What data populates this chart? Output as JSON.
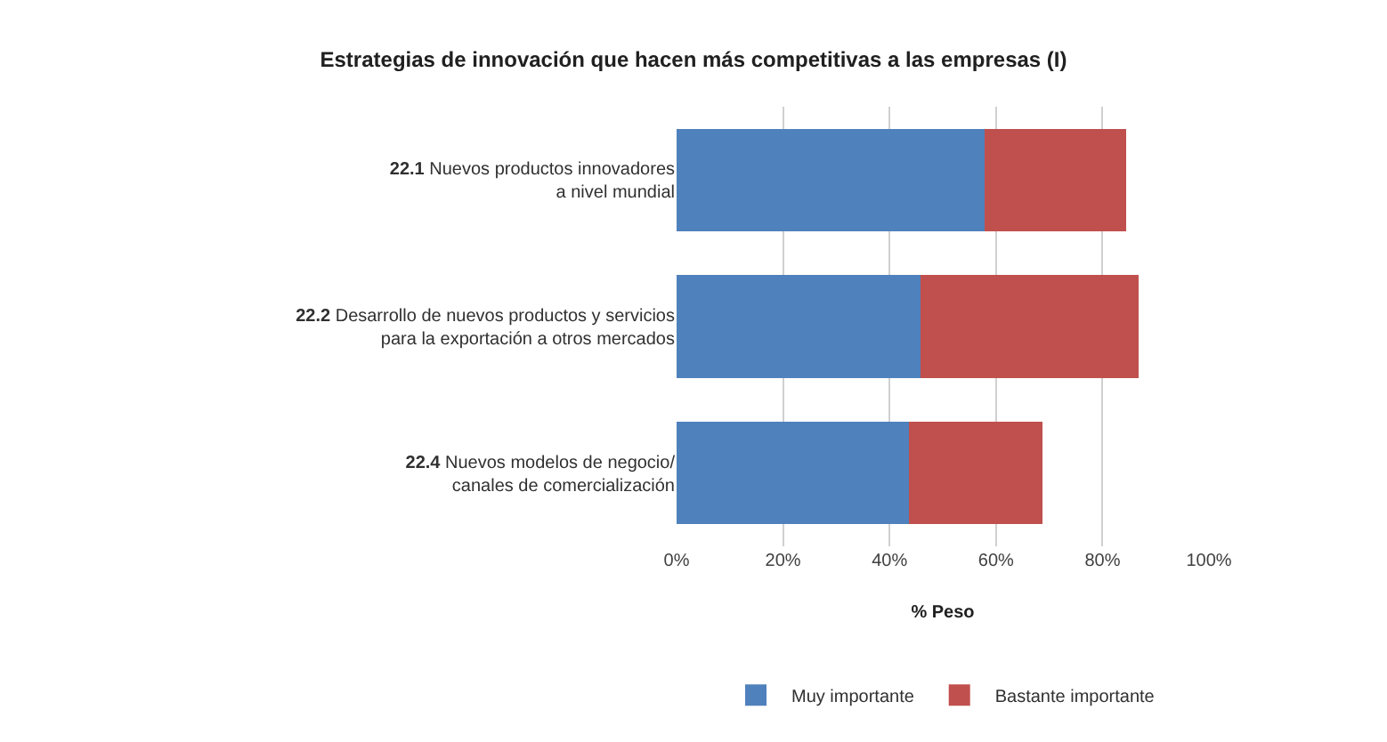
{
  "chart_data": {
    "type": "bar",
    "orientation": "horizontal",
    "stacked": true,
    "title": "Estrategias de innovación que hacen más competitivas a las empresas (I)",
    "xlabel": "% Peso",
    "categories": [
      "22.1 Nuevos productos innovadores\na nivel mundial",
      "22.2 Desarrollo de nuevos productos y servicios\npara la exportación a otros mercados",
      "22.4 Nuevos modelos de negocio/\ncanales de comercialización"
    ],
    "series": [
      {
        "name": "Muy importante",
        "color": "#4f81bd",
        "values": [
          57.9,
          45.8,
          43.7
        ]
      },
      {
        "name": "Bastante importante",
        "color": "#c0504d",
        "values": [
          26.6,
          41.0,
          25.1
        ]
      }
    ],
    "xlim": [
      0,
      100
    ],
    "xticks": [
      {
        "value": 0,
        "label": "0%"
      },
      {
        "value": 20,
        "label": "20%"
      },
      {
        "value": 40,
        "label": "40%"
      },
      {
        "value": 60,
        "label": "60%"
      },
      {
        "value": 80,
        "label": "80%"
      },
      {
        "value": 100,
        "label": "100%"
      }
    ],
    "grid": "x",
    "legend": "bottom"
  }
}
